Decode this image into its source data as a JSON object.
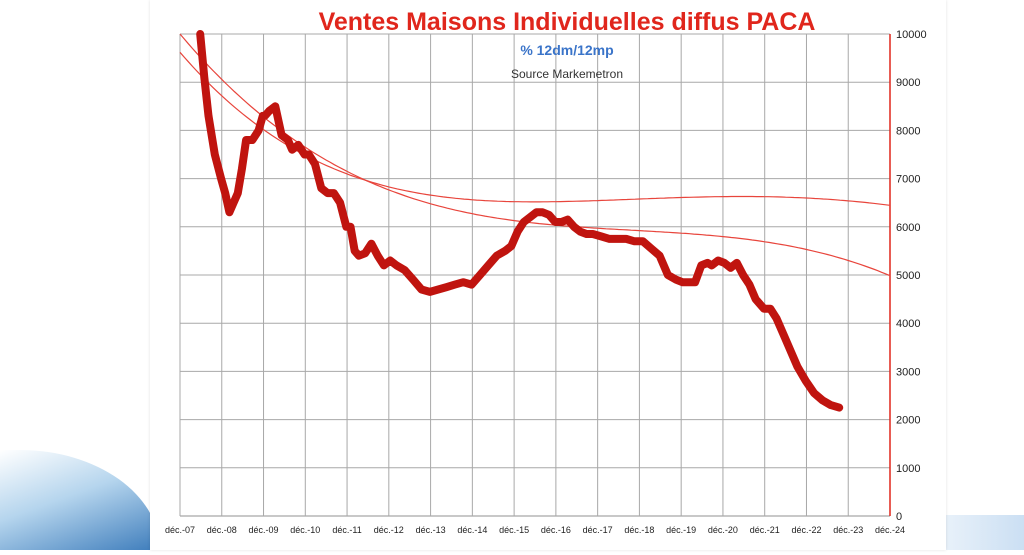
{
  "chart_data": {
    "type": "line",
    "title": "Ventes Maisons Individuelles diffus PACA",
    "subtitle": "% 12dm/12mp",
    "source": "Source Markemetron",
    "x_labels": [
      "déc.-07",
      "déc.-08",
      "déc.-09",
      "déc.-10",
      "déc.-11",
      "déc.-12",
      "déc.-13",
      "déc.-14",
      "déc.-15",
      "déc.-16",
      "déc.-17",
      "déc.-18",
      "déc.-19",
      "déc.-20",
      "déc.-21",
      "déc.-22",
      "déc.-23",
      "déc.-24"
    ],
    "xlim": [
      2007.917,
      2024.917
    ],
    "ylim": [
      0,
      10000
    ],
    "y_ticks": [
      0,
      1000,
      2000,
      3000,
      4000,
      5000,
      6000,
      7000,
      8000,
      9000,
      10000
    ],
    "y_axis_side": "right",
    "grid": true,
    "colors": {
      "title": "#e0261c",
      "subtitle": "#3a74c9",
      "series": "#c0140f",
      "trend": "#e8453c",
      "grid": "#a8a8a8",
      "axis": "#e0261c"
    },
    "series": [
      {
        "x": [
          2008.4,
          2008.5,
          2008.6,
          2008.75,
          2008.9,
          2009.0,
          2009.1,
          2009.2,
          2009.3,
          2009.4,
          2009.5,
          2009.65,
          2009.8,
          2009.9,
          2009.95,
          2010.05,
          2010.2,
          2010.35,
          2010.5,
          2010.6,
          2010.75,
          2010.9,
          2011.0,
          2011.15,
          2011.3,
          2011.45,
          2011.6,
          2011.75,
          2011.9,
          2012.0,
          2012.1,
          2012.2,
          2012.35,
          2012.5,
          2012.65,
          2012.8,
          2012.95,
          2013.1,
          2013.3,
          2013.5,
          2013.7,
          2013.9,
          2014.1,
          2014.3,
          2014.5,
          2014.7,
          2014.9,
          2015.1,
          2015.3,
          2015.5,
          2015.7,
          2015.85,
          2016.0,
          2016.15,
          2016.3,
          2016.45,
          2016.6,
          2016.75,
          2016.9,
          2017.05,
          2017.2,
          2017.35,
          2017.5,
          2017.65,
          2017.8,
          2018.0,
          2018.2,
          2018.4,
          2018.6,
          2018.8,
          2019.0,
          2019.2,
          2019.4,
          2019.6,
          2019.8,
          2019.95,
          2020.1,
          2020.25,
          2020.4,
          2020.55,
          2020.65,
          2020.8,
          2020.95,
          2021.1,
          2021.25,
          2021.4,
          2021.55,
          2021.7,
          2021.9,
          2022.05,
          2022.2,
          2022.4,
          2022.55,
          2022.7,
          2022.9,
          2023.1,
          2023.3,
          2023.5,
          2023.7
        ],
        "y": [
          10000,
          9100,
          8300,
          7500,
          7000,
          6700,
          6300,
          6500,
          6700,
          7200,
          7800,
          7800,
          8000,
          8300,
          8300,
          8400,
          8500,
          7900,
          7800,
          7600,
          7700,
          7500,
          7500,
          7300,
          6800,
          6700,
          6700,
          6500,
          6000,
          6000,
          5500,
          5400,
          5450,
          5650,
          5400,
          5200,
          5300,
          5200,
          5100,
          4900,
          4700,
          4650,
          4700,
          4750,
          4800,
          4850,
          4800,
          5000,
          5200,
          5400,
          5500,
          5600,
          5900,
          6100,
          6200,
          6300,
          6300,
          6250,
          6100,
          6100,
          6150,
          6000,
          5900,
          5850,
          5850,
          5800,
          5750,
          5750,
          5750,
          5700,
          5700,
          5550,
          5400,
          5000,
          4900,
          4850,
          4850,
          4850,
          5200,
          5250,
          5200,
          5300,
          5250,
          5150,
          5250,
          5000,
          4800,
          4500,
          4300,
          4300,
          4100,
          3700,
          3400,
          3100,
          2800,
          2550,
          2400,
          2300,
          2250
        ]
      }
    ],
    "trendlines": [
      {
        "type": "polynomial",
        "coefficients": [
          10000,
          -1030,
          90.5,
          -2.78
        ]
      },
      {
        "type": "polynomial",
        "coefficients": [
          9620,
          -1011,
          114.58,
          -5.19,
          0.0766
        ]
      }
    ]
  }
}
